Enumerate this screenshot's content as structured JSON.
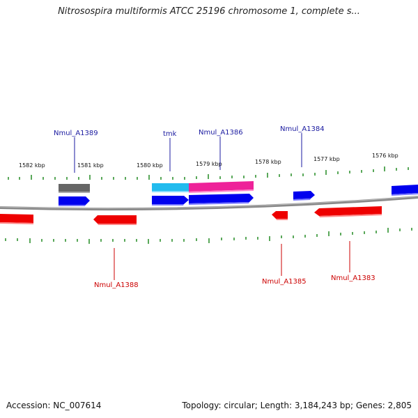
{
  "title": "Nitrosospira multiformis ATCC 25196 chromosome 1, complete s...",
  "footer": {
    "accession": "Accession: NC_007614",
    "summary": "Topology: circular; Length: 3,184,243 bp; Genes: 2,805"
  },
  "kbp_labels": [
    "1582 kbp",
    "1581 kbp",
    "1580 kbp",
    "1579 kbp",
    "1578 kbp",
    "1577 kbp",
    "1576 kbp"
  ],
  "genes_top": [
    "Nmul_A1389",
    "tmk",
    "Nmul_A1386",
    "Nmul_A1384"
  ],
  "genes_bottom": [
    "Nmul_A1388",
    "Nmul_A1385",
    "Nmul_A1383"
  ],
  "colors": {
    "forward": "#0000ee",
    "reverse": "#ee0000",
    "tick": "#228b22",
    "backbone": "#888888",
    "gray_feature": "#666666",
    "cyan_feature": "#22bbee",
    "magenta_feature": "#ee2299"
  }
}
